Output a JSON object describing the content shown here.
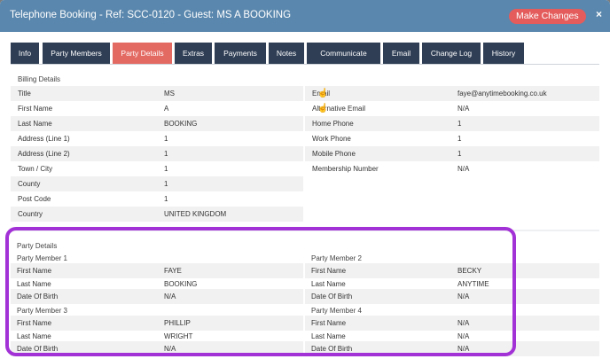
{
  "header": {
    "title": "Telephone Booking - Ref: SCC-0120 - Guest: MS A BOOKING",
    "make_changes": "Make Changes",
    "close": "×"
  },
  "tabs": [
    "Info",
    "Party Members",
    "Party Details",
    "Extras",
    "Payments",
    "Notes",
    "Communicate",
    "Email",
    "Change Log",
    "History"
  ],
  "active_tab": "Party Details",
  "billing": {
    "title": "Billing Details",
    "left": [
      {
        "label": "Title",
        "value": "MS"
      },
      {
        "label": "First Name",
        "value": "A"
      },
      {
        "label": "Last Name",
        "value": "BOOKING"
      },
      {
        "label": "Address (Line 1)",
        "value": "1"
      },
      {
        "label": "Address (Line 2)",
        "value": "1"
      },
      {
        "label": "Town / City",
        "value": "1"
      },
      {
        "label": "County",
        "value": "1"
      },
      {
        "label": "Post Code",
        "value": "1"
      },
      {
        "label": "Country",
        "value": "UNITED KINGDOM"
      }
    ],
    "right": [
      {
        "label": "Email",
        "value": "faye@anytimebooking.co.uk",
        "icon": "hand-pointer-icon"
      },
      {
        "label": "Alternative Email",
        "value": "N/A",
        "icon": "hand-pointer-icon"
      },
      {
        "label": "Home Phone",
        "value": "1"
      },
      {
        "label": "Work Phone",
        "value": "1"
      },
      {
        "label": "Mobile Phone",
        "value": "1"
      },
      {
        "label": "Membership Number",
        "value": "N/A"
      }
    ]
  },
  "party": {
    "title": "Party Details",
    "members": [
      {
        "heading": "Party Member 1",
        "rows": [
          {
            "label": "First Name",
            "value": "FAYE"
          },
          {
            "label": "Last Name",
            "value": "BOOKING"
          },
          {
            "label": "Date Of Birth",
            "value": "N/A"
          }
        ]
      },
      {
        "heading": "Party Member 2",
        "rows": [
          {
            "label": "First Name",
            "value": "BECKY"
          },
          {
            "label": "Last Name",
            "value": "ANYTIME"
          },
          {
            "label": "Date Of Birth",
            "value": "N/A"
          }
        ]
      },
      {
        "heading": "Party Member 3",
        "rows": [
          {
            "label": "First Name",
            "value": "PHILLIP"
          },
          {
            "label": "Last Name",
            "value": "WRIGHT"
          },
          {
            "label": "Date Of Birth",
            "value": "N/A"
          }
        ]
      },
      {
        "heading": "Party Member 4",
        "rows": [
          {
            "label": "First Name",
            "value": "N/A"
          },
          {
            "label": "Last Name",
            "value": "N/A"
          },
          {
            "label": "Date Of Birth",
            "value": "N/A"
          }
        ]
      }
    ]
  },
  "colors": {
    "header": "#5a87ad",
    "tab": "#2f3e55",
    "tab_active": "#e36a63",
    "make_changes": "#e45c5c",
    "highlight": "#a332d6"
  }
}
